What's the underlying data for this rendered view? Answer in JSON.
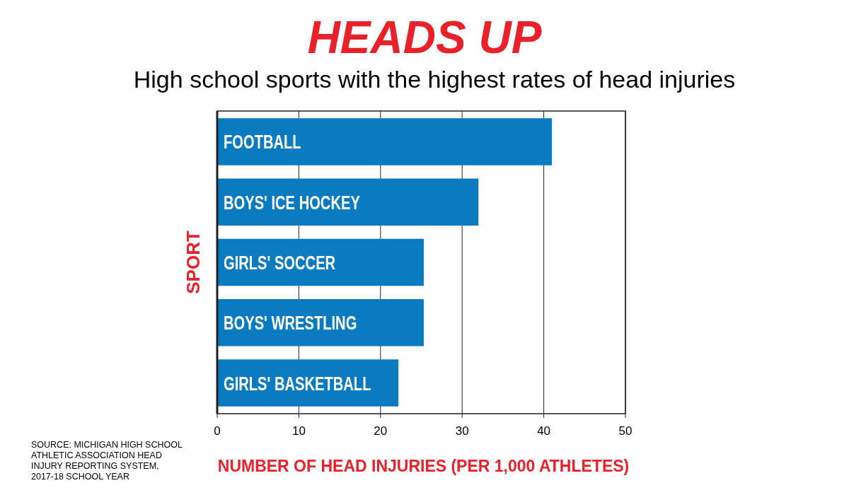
{
  "chart_data": {
    "type": "bar",
    "orientation": "horizontal",
    "title": "HEADS UP",
    "subtitle": "High school sports with the highest rates of head injuries",
    "categories": [
      "FOOTBALL",
      "BOYS' ICE HOCKEY",
      "GIRLS' SOCCER",
      "BOYS' WRESTLING",
      "GIRLS' BASKETBALL"
    ],
    "values": [
      41,
      32,
      25.3,
      25.3,
      22.2
    ],
    "color": "#0a7bc1",
    "xlim": [
      0,
      50
    ],
    "xticks": [
      0,
      10,
      20,
      30,
      40,
      50
    ],
    "grid": "x",
    "xlabel": "NUMBER OF HEAD INJURIES (PER 1,000 ATHLETES)",
    "ylabel": "SPORT",
    "annotations": [
      "SOURCE: MICHIGAN HIGH SCHOOL ATHLETIC ASSOCIATION HEAD INJURY REPORTING SYSTEM, 2017-18 SCHOOL YEAR"
    ]
  }
}
